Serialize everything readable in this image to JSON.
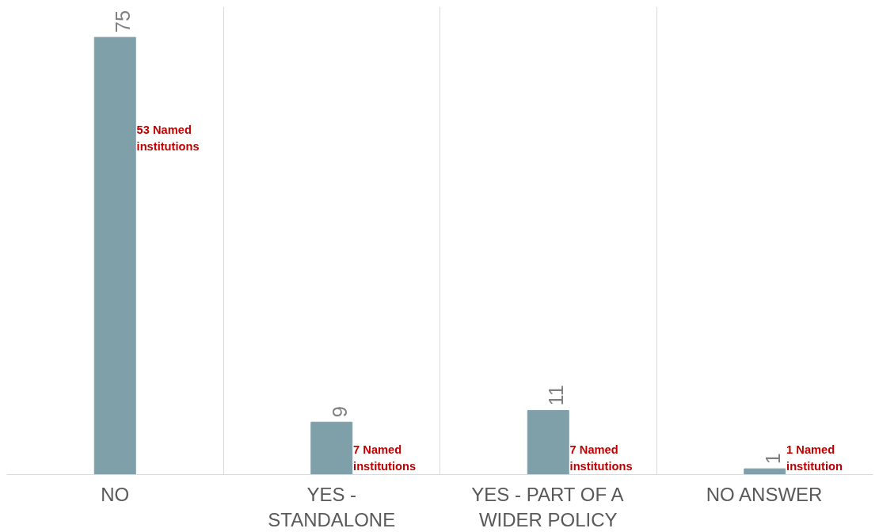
{
  "chart_data": {
    "type": "bar",
    "categories": [
      "NO",
      "YES - STANDALONE",
      "YES - PART OF A WIDER POLICY",
      "NO ANSWER"
    ],
    "values": [
      75,
      9,
      11,
      1
    ],
    "color": "#7f9fa9",
    "data_labels": true,
    "grid": "x",
    "annotations": [
      "53 Named institutions",
      "7 Named institutions",
      "7 Named institutions",
      "1 Named institution"
    ]
  }
}
